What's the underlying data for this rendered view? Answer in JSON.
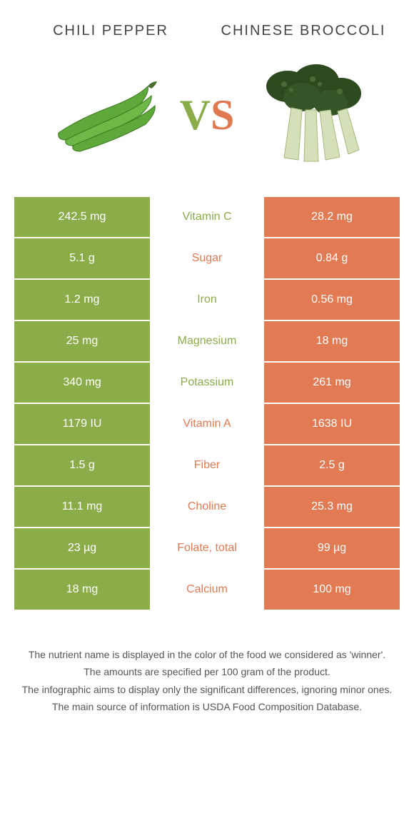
{
  "left_title": "Chili pepper",
  "right_title": "Chinese broccoli",
  "vs_v": "V",
  "vs_s": "S",
  "colors": {
    "green": "#8aad4a",
    "orange": "#e27a54",
    "mid_green_text": "#8aad4a",
    "mid_orange_text": "#e27a54"
  },
  "rows": [
    {
      "left": "242.5 mg",
      "mid": "Vitamin C",
      "right": "28.2 mg",
      "winner": "left"
    },
    {
      "left": "5.1 g",
      "mid": "Sugar",
      "right": "0.84 g",
      "winner": "right"
    },
    {
      "left": "1.2 mg",
      "mid": "Iron",
      "right": "0.56 mg",
      "winner": "left"
    },
    {
      "left": "25 mg",
      "mid": "Magnesium",
      "right": "18 mg",
      "winner": "left"
    },
    {
      "left": "340 mg",
      "mid": "Potassium",
      "right": "261 mg",
      "winner": "left"
    },
    {
      "left": "1179 IU",
      "mid": "Vitamin A",
      "right": "1638 IU",
      "winner": "right"
    },
    {
      "left": "1.5 g",
      "mid": "Fiber",
      "right": "2.5 g",
      "winner": "right"
    },
    {
      "left": "11.1 mg",
      "mid": "Choline",
      "right": "25.3 mg",
      "winner": "right"
    },
    {
      "left": "23 µg",
      "mid": "Folate, total",
      "right": "99 µg",
      "winner": "right"
    },
    {
      "left": "18 mg",
      "mid": "Calcium",
      "right": "100 mg",
      "winner": "right"
    }
  ],
  "footer": [
    "The nutrient name is displayed in the color of the food we considered as 'winner'.",
    "The amounts are specified per 100 gram of the product.",
    "The infographic aims to display only the significant differences, ignoring minor ones.",
    "The main source of information is USDA Food Composition Database."
  ]
}
